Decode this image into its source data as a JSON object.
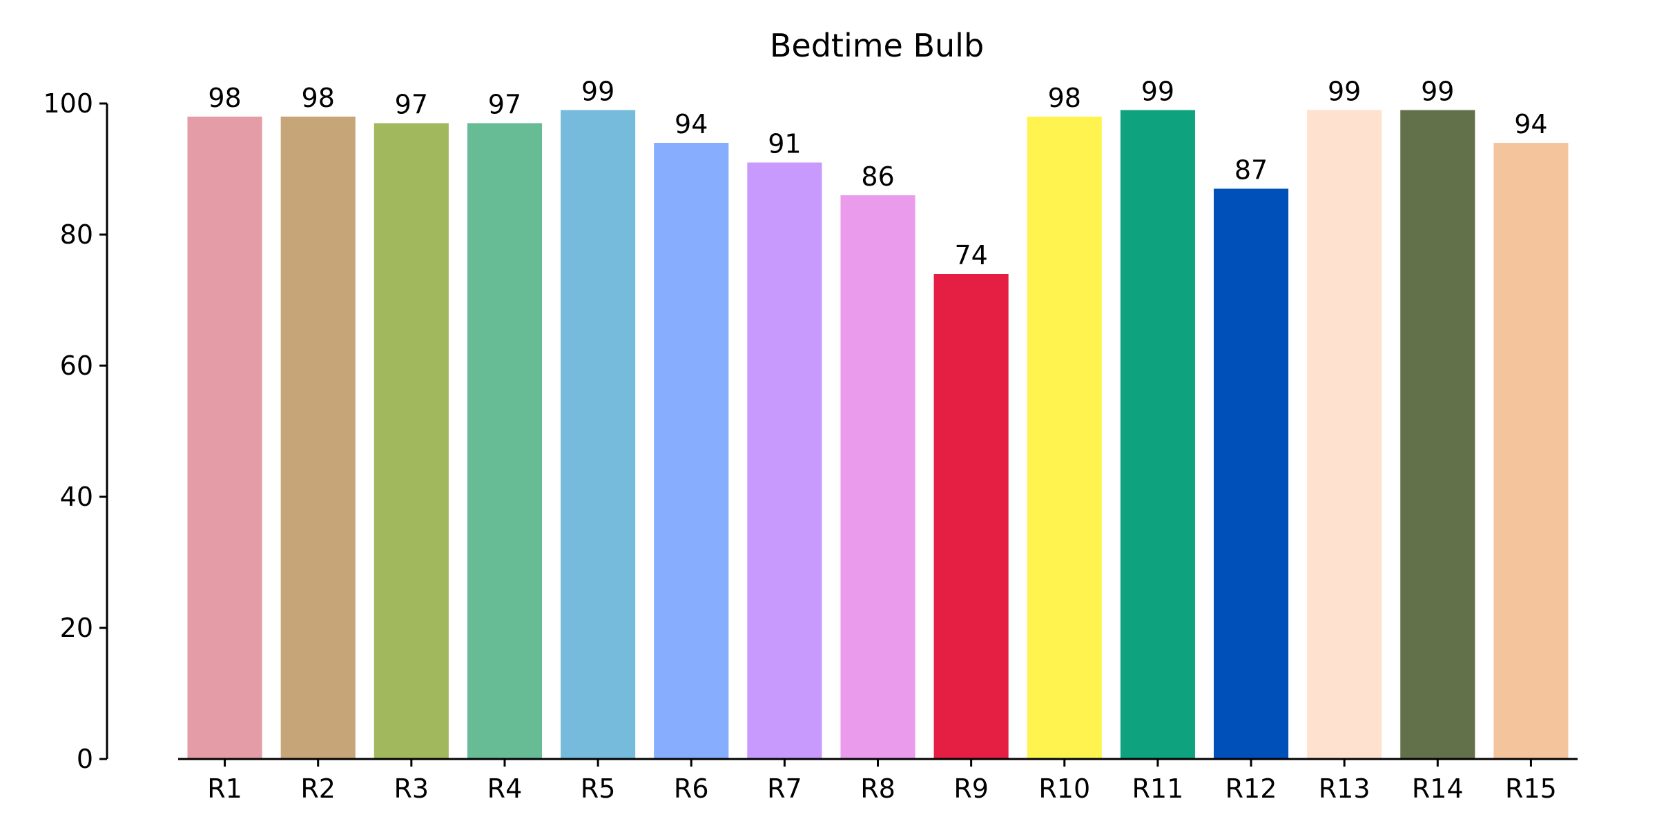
{
  "chart_data": {
    "type": "bar",
    "title": "Bedtime Bulb",
    "xlabel": "",
    "ylabel": "",
    "categories": [
      "R1",
      "R2",
      "R3",
      "R4",
      "R5",
      "R6",
      "R7",
      "R8",
      "R9",
      "R10",
      "R11",
      "R12",
      "R13",
      "R14",
      "R15"
    ],
    "values": [
      98,
      98,
      97,
      97,
      99,
      94,
      91,
      86,
      74,
      98,
      99,
      87,
      99,
      99,
      94
    ],
    "data_labels": [
      "98",
      "98",
      "97",
      "97",
      "99",
      "94",
      "91",
      "86",
      "74",
      "98",
      "99",
      "87",
      "99",
      "99",
      "94"
    ],
    "colors": [
      "#e49da6",
      "#c6a678",
      "#a2b85c",
      "#67bb95",
      "#76bbdb",
      "#86adfe",
      "#c89afd",
      "#eb9beb",
      "#e51e43",
      "#fff34f",
      "#0ea27e",
      "#0050b9",
      "#ffe1d0",
      "#62714a",
      "#f4c59d"
    ],
    "ylim": [
      0,
      100
    ],
    "yticks": [
      0,
      20,
      40,
      60,
      80,
      100
    ],
    "ytick_labels": [
      "0",
      "20",
      "40",
      "60",
      "80",
      "100"
    ],
    "grid": false,
    "legend": "none"
  }
}
